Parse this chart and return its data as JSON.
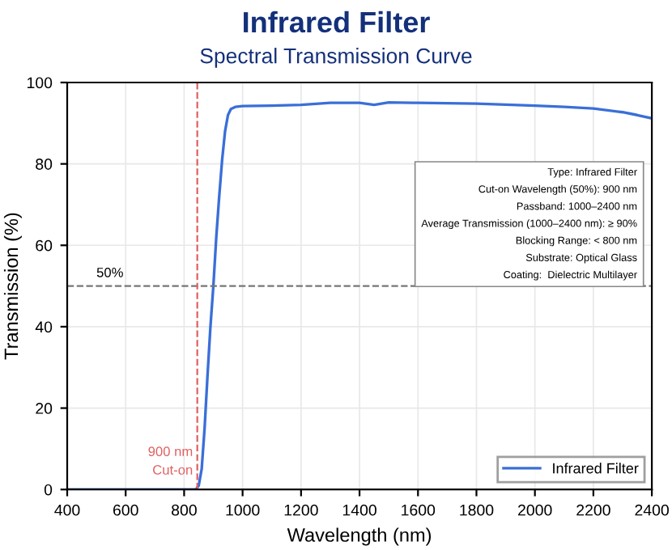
{
  "chart_data": {
    "type": "line",
    "title": "Infrared Filter",
    "subtitle": "Spectral Transmission Curve",
    "xlabel": "Wavelength (nm)",
    "ylabel": "Transmission (%)",
    "x": [
      400,
      600,
      800,
      840,
      850,
      860,
      870,
      880,
      890,
      900,
      910,
      920,
      930,
      940,
      950,
      960,
      975,
      1000,
      1100,
      1200,
      1300,
      1350,
      1400,
      1450,
      1500,
      1600,
      1800,
      2000,
      2100,
      2200,
      2300,
      2350,
      2400
    ],
    "series": [
      {
        "name": "Infrared Filter",
        "color": "#3a6fd8",
        "values": [
          0,
          0,
          0,
          0,
          1,
          5,
          15,
          28,
          40,
          50,
          62,
          72,
          81,
          88,
          92,
          93.5,
          94,
          94.2,
          94.3,
          94.5,
          95,
          95,
          95,
          94.5,
          95.1,
          95,
          94.8,
          94.3,
          94,
          93.6,
          92.7,
          92,
          91.2
        ]
      }
    ],
    "xlim": [
      400,
      2400
    ],
    "ylim": [
      0,
      100
    ],
    "xticks": [
      400,
      600,
      800,
      1000,
      1200,
      1400,
      1600,
      1800,
      2000,
      2200,
      2400
    ],
    "yticks": [
      0,
      20,
      40,
      60,
      80,
      100
    ],
    "grid": true,
    "legend": "bottom right",
    "marker": "none",
    "line_style": "solid",
    "ref_lines": [
      {
        "axis": "y",
        "value": 50,
        "label": "50%",
        "color": "#777777",
        "line_style": "dashed"
      },
      {
        "axis": "x",
        "value": 845,
        "label": "900 nm\nCut-on",
        "color": "#e06060",
        "line_style": "dashed"
      }
    ],
    "annotations": [
      "Type: Infrared Filter\nCut-on Wavelength (50%): 900 nm\nPassband: 1000–2400 nm\nAverage Transmission (1000–2400 nm): ≥ 90%\nBlocking Range: < 800 nm\nSubstrate: Optical Glass\nCoating:  Dielectric Multilayer"
    ]
  }
}
